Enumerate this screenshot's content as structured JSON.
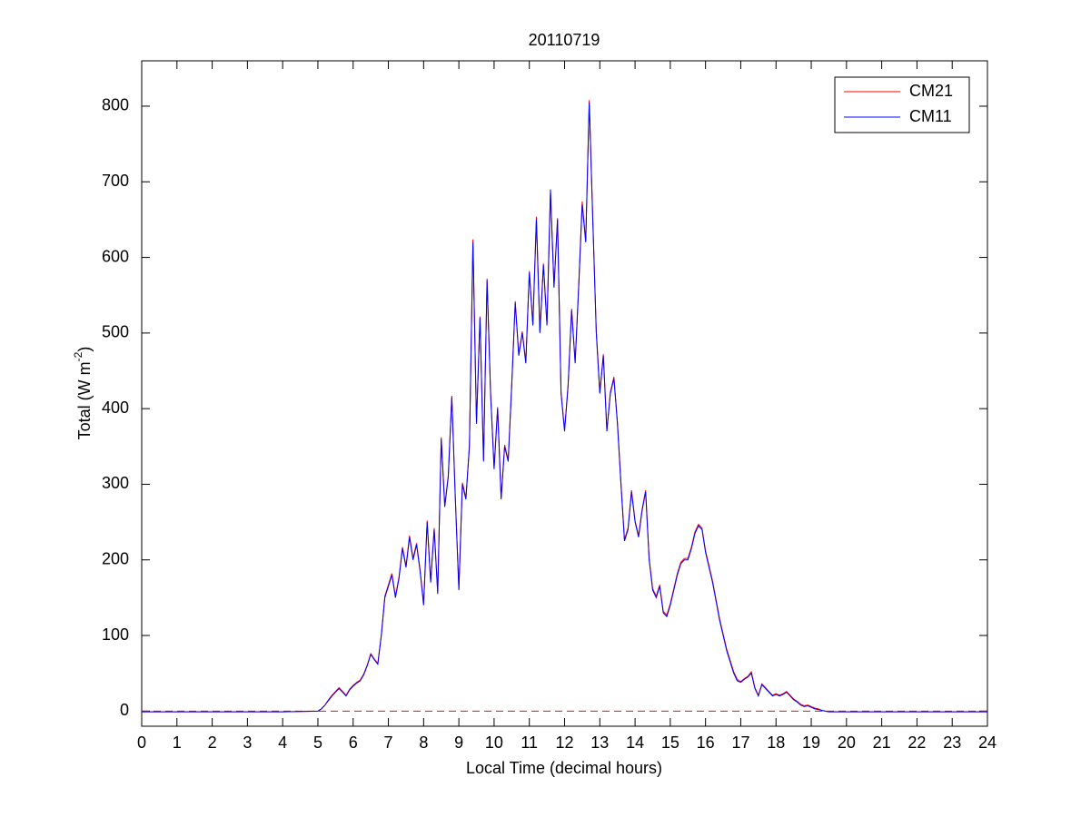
{
  "chart_data": {
    "type": "line",
    "title": "20110719",
    "xlabel": "Local Time (decimal hours)",
    "ylabel": [
      "Total (W m",
      "-2",
      ")"
    ],
    "x": [
      0,
      1,
      2,
      3,
      4,
      5.0,
      5.1,
      5.2,
      5.3,
      5.4,
      5.5,
      5.6,
      5.7,
      5.8,
      5.9,
      6.0,
      6.1,
      6.2,
      6.3,
      6.4,
      6.5,
      6.6,
      6.7,
      6.8,
      6.9,
      7.0,
      7.1,
      7.2,
      7.3,
      7.4,
      7.5,
      7.6,
      7.7,
      7.8,
      7.9,
      8.0,
      8.1,
      8.2,
      8.3,
      8.4,
      8.5,
      8.6,
      8.7,
      8.8,
      8.9,
      9.0,
      9.1,
      9.2,
      9.3,
      9.4,
      9.5,
      9.6,
      9.7,
      9.8,
      9.9,
      10.0,
      10.1,
      10.2,
      10.3,
      10.4,
      10.5,
      10.6,
      10.7,
      10.8,
      10.9,
      11.0,
      11.1,
      11.2,
      11.3,
      11.4,
      11.5,
      11.6,
      11.7,
      11.8,
      11.9,
      12.0,
      12.1,
      12.2,
      12.3,
      12.4,
      12.5,
      12.6,
      12.7,
      12.8,
      12.9,
      13.0,
      13.1,
      13.2,
      13.3,
      13.4,
      13.5,
      13.6,
      13.7,
      13.8,
      13.9,
      14.0,
      14.1,
      14.2,
      14.3,
      14.4,
      14.5,
      14.6,
      14.7,
      14.8,
      14.9,
      15.0,
      15.1,
      15.2,
      15.3,
      15.4,
      15.5,
      15.6,
      15.7,
      15.8,
      15.9,
      16.0,
      16.1,
      16.2,
      16.3,
      16.4,
      16.5,
      16.6,
      16.7,
      16.8,
      16.9,
      17.0,
      17.1,
      17.2,
      17.3,
      17.4,
      17.5,
      17.6,
      17.7,
      17.8,
      17.9,
      18.0,
      18.1,
      18.2,
      18.3,
      18.4,
      18.5,
      18.6,
      18.7,
      18.8,
      18.9,
      19.0,
      19.1,
      19.2,
      19.3,
      19.4,
      19.5,
      20,
      21,
      22,
      23,
      24
    ],
    "series": [
      {
        "name": "CM21",
        "color": "#ff0000",
        "values": [
          -1,
          -1,
          -1,
          -1,
          -1,
          0,
          3,
          8,
          15,
          21,
          26,
          31,
          26,
          21,
          29,
          34,
          38,
          41,
          49,
          61,
          76,
          69,
          63,
          101,
          152,
          167,
          182,
          152,
          177,
          217,
          192,
          232,
          202,
          222,
          187,
          142,
          252,
          172,
          242,
          157,
          362,
          272,
          312,
          417,
          282,
          162,
          302,
          282,
          352,
          624,
          382,
          522,
          332,
          572,
          422,
          322,
          402,
          282,
          352,
          332,
          432,
          542,
          472,
          502,
          462,
          582,
          512,
          654,
          502,
          592,
          512,
          686,
          562,
          652,
          422,
          372,
          432,
          532,
          462,
          562,
          674,
          622,
          808,
          652,
          502,
          422,
          472,
          372,
          422,
          442,
          382,
          302,
          227,
          242,
          292,
          252,
          232,
          267,
          292,
          202,
          162,
          152,
          167,
          132,
          127,
          142,
          162,
          182,
          197,
          202,
          202,
          217,
          237,
          247,
          242,
          212,
          192,
          172,
          147,
          122,
          102,
          82,
          67,
          52,
          42,
          39,
          43,
          46,
          52,
          31,
          21,
          36,
          31,
          26,
          21,
          23,
          21,
          23,
          26,
          21,
          16,
          13,
          9,
          7,
          8,
          6,
          4,
          3,
          1,
          0,
          -1,
          -1,
          -1,
          -1,
          -1,
          -1
        ]
      },
      {
        "name": "CM11",
        "color": "#0000ff",
        "values": [
          -1,
          -1,
          -1,
          -1,
          -1,
          0,
          3,
          8,
          14,
          20,
          25,
          30,
          25,
          20,
          28,
          33,
          37,
          40,
          48,
          60,
          75,
          68,
          62,
          100,
          150,
          165,
          180,
          150,
          175,
          215,
          190,
          230,
          200,
          220,
          185,
          140,
          250,
          170,
          240,
          155,
          360,
          270,
          310,
          415,
          280,
          160,
          300,
          280,
          350,
          620,
          380,
          520,
          330,
          570,
          420,
          320,
          400,
          280,
          350,
          330,
          430,
          540,
          470,
          500,
          460,
          580,
          510,
          650,
          500,
          590,
          510,
          690,
          560,
          650,
          420,
          370,
          430,
          530,
          460,
          560,
          670,
          620,
          805,
          650,
          500,
          420,
          470,
          370,
          420,
          440,
          380,
          300,
          225,
          240,
          290,
          250,
          230,
          265,
          290,
          200,
          160,
          150,
          165,
          130,
          125,
          140,
          160,
          180,
          195,
          200,
          200,
          215,
          235,
          245,
          240,
          210,
          190,
          170,
          145,
          120,
          100,
          80,
          65,
          50,
          40,
          38,
          42,
          45,
          50,
          30,
          20,
          35,
          30,
          25,
          20,
          22,
          20,
          22,
          25,
          20,
          15,
          12,
          8,
          6,
          7,
          5,
          3,
          2,
          1,
          0,
          -1,
          -1,
          -1,
          -1,
          -1,
          -1
        ]
      }
    ],
    "reference_line": {
      "value": 0,
      "color": "#ff0000",
      "style": "dashed"
    },
    "xlim": [
      0,
      24
    ],
    "xticks": [
      0,
      1,
      2,
      3,
      4,
      5,
      6,
      7,
      8,
      9,
      10,
      11,
      12,
      13,
      14,
      15,
      16,
      17,
      18,
      19,
      20,
      21,
      22,
      23,
      24
    ],
    "ylim": [
      -20,
      860
    ],
    "yticks": [
      0,
      100,
      200,
      300,
      400,
      500,
      600,
      700,
      800
    ],
    "legend": "top-right",
    "grid": false
  }
}
